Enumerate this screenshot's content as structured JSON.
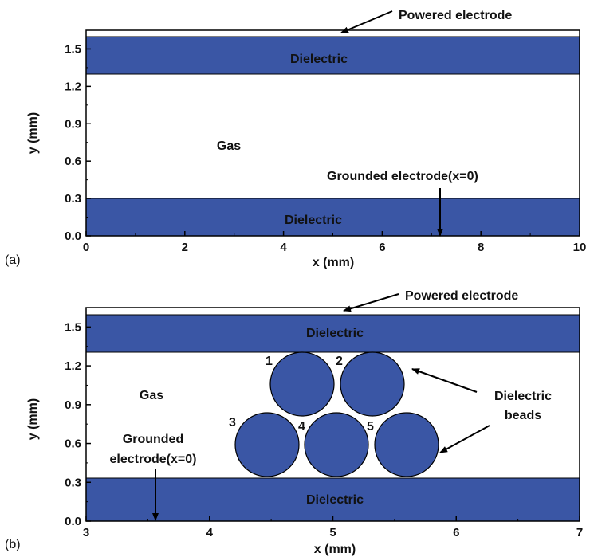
{
  "colors": {
    "dielectric": "#3a56a5",
    "bead": "#3a56a5",
    "electrode": "#ffffff",
    "axis": "#000000"
  },
  "panel_a": {
    "panel_label": "(a)",
    "xlabel": "x (mm)",
    "ylabel": "y (mm)",
    "xlim": [
      0,
      10
    ],
    "ylim": [
      0,
      1.65
    ],
    "xticks": [
      "0",
      "2",
      "4",
      "6",
      "8",
      "10"
    ],
    "yticks": [
      "0.0",
      "0.3",
      "0.6",
      "0.9",
      "1.2",
      "1.5"
    ],
    "top_dielectric_label": "Dielectric",
    "bottom_dielectric_label": "Dielectric",
    "gas_label": "Gas",
    "powered_label": "Powered electrode",
    "grounded_label": "Grounded electrode(x=0)"
  },
  "panel_b": {
    "panel_label": "(b)",
    "xlabel": "x (mm)",
    "ylabel": "y (mm)",
    "xlim": [
      3,
      7
    ],
    "ylim": [
      0,
      1.65
    ],
    "xticks": [
      "3",
      "4",
      "5",
      "6",
      "7"
    ],
    "yticks": [
      "0.0",
      "0.3",
      "0.6",
      "0.9",
      "1.2",
      "1.5"
    ],
    "top_dielectric_label": "Dielectric",
    "bottom_dielectric_label": "Dielectric",
    "gas_label": "Gas",
    "powered_label": "Powered electrode",
    "grounded_label_line1": "Grounded",
    "grounded_label_line2": "electrode(x=0)",
    "beads_label_line1": "Dielectric",
    "beads_label_line2": "beads",
    "bead_numbers": [
      "1",
      "2",
      "3",
      "4",
      "5"
    ]
  }
}
